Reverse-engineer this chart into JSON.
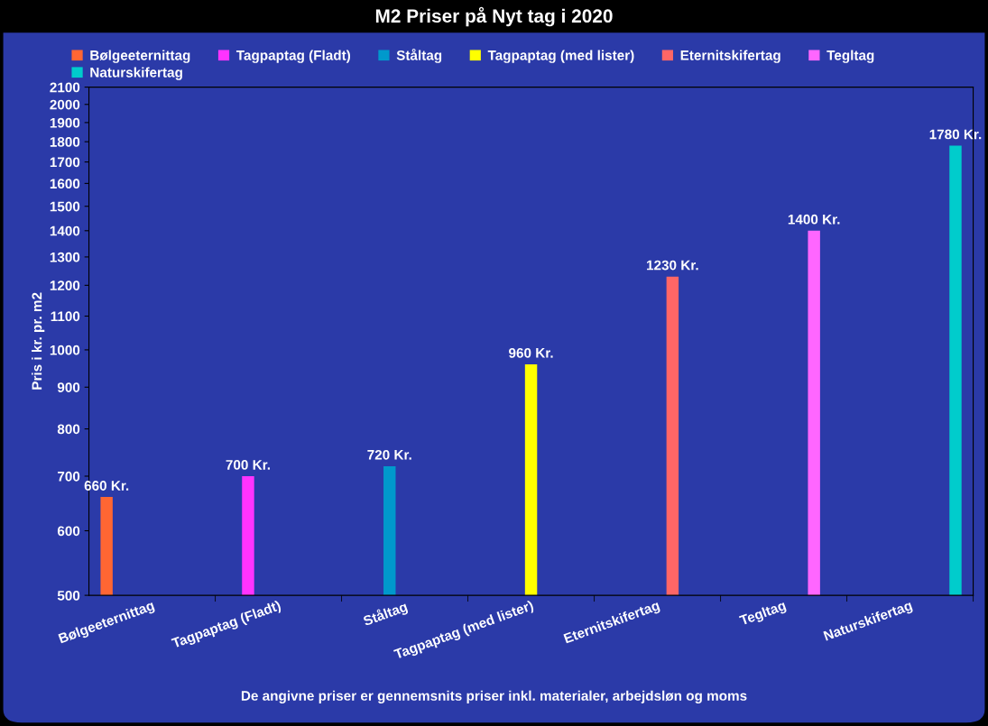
{
  "chart_data": {
    "type": "bar",
    "title": "M2 Priser på Nyt tag i 2020",
    "ylabel": "Pris i kr. pr. m2",
    "categories": [
      "Bølgeeternittag",
      "Tagpaptag (Fladt)",
      "Ståltag",
      "Tagpaptag (med lister)",
      "Eternitskifertag",
      "Tegltag",
      "Naturskifertag"
    ],
    "series": [
      {
        "name": "Bølgeeternittag",
        "color": "#ff6633",
        "values": [
          660,
          null,
          null,
          null,
          null,
          null,
          null
        ],
        "value_labels": [
          "660 Kr.",
          null,
          null,
          null,
          null,
          null,
          null
        ]
      },
      {
        "name": "Tagpaptag (Fladt)",
        "color": "#ff33ff",
        "values": [
          null,
          700,
          null,
          null,
          null,
          null,
          null
        ],
        "value_labels": [
          null,
          "700 Kr.",
          null,
          null,
          null,
          null,
          null
        ]
      },
      {
        "name": "Ståltag",
        "color": "#0099cc",
        "values": [
          null,
          null,
          720,
          null,
          null,
          null,
          null
        ],
        "value_labels": [
          null,
          null,
          "720 Kr.",
          null,
          null,
          null,
          null
        ]
      },
      {
        "name": "Tagpaptag (med lister)",
        "color": "#ffff00",
        "values": [
          null,
          null,
          null,
          960,
          null,
          null,
          null
        ],
        "value_labels": [
          null,
          null,
          null,
          "960 Kr.",
          null,
          null,
          null
        ]
      },
      {
        "name": "Eternitskifertag",
        "color": "#ff6666",
        "values": [
          null,
          null,
          null,
          null,
          1230,
          null,
          null
        ],
        "value_labels": [
          null,
          null,
          null,
          null,
          "1230 Kr.",
          null,
          null
        ]
      },
      {
        "name": "Tegltag",
        "color": "#ff66ff",
        "values": [
          null,
          null,
          null,
          null,
          null,
          1400,
          null
        ],
        "value_labels": [
          null,
          null,
          null,
          null,
          null,
          "1400 Kr.",
          null
        ]
      },
      {
        "name": "Naturskifertag",
        "color": "#00cccc",
        "values": [
          null,
          null,
          null,
          null,
          null,
          null,
          1780
        ],
        "value_labels": [
          null,
          null,
          null,
          null,
          null,
          null,
          "1780 Kr."
        ]
      }
    ],
    "log": true,
    "ylim": [
      500,
      2100
    ],
    "yticks": [
      500,
      600,
      700,
      800,
      900,
      1000,
      1100,
      1200,
      1300,
      1400,
      1500,
      1600,
      1700,
      1800,
      1900,
      2000,
      2100
    ],
    "grid": false,
    "legend": "top",
    "annotations": [
      "De angivne priser er gennemsnits priser inkl. materialer, arbejdsløn og moms"
    ]
  }
}
